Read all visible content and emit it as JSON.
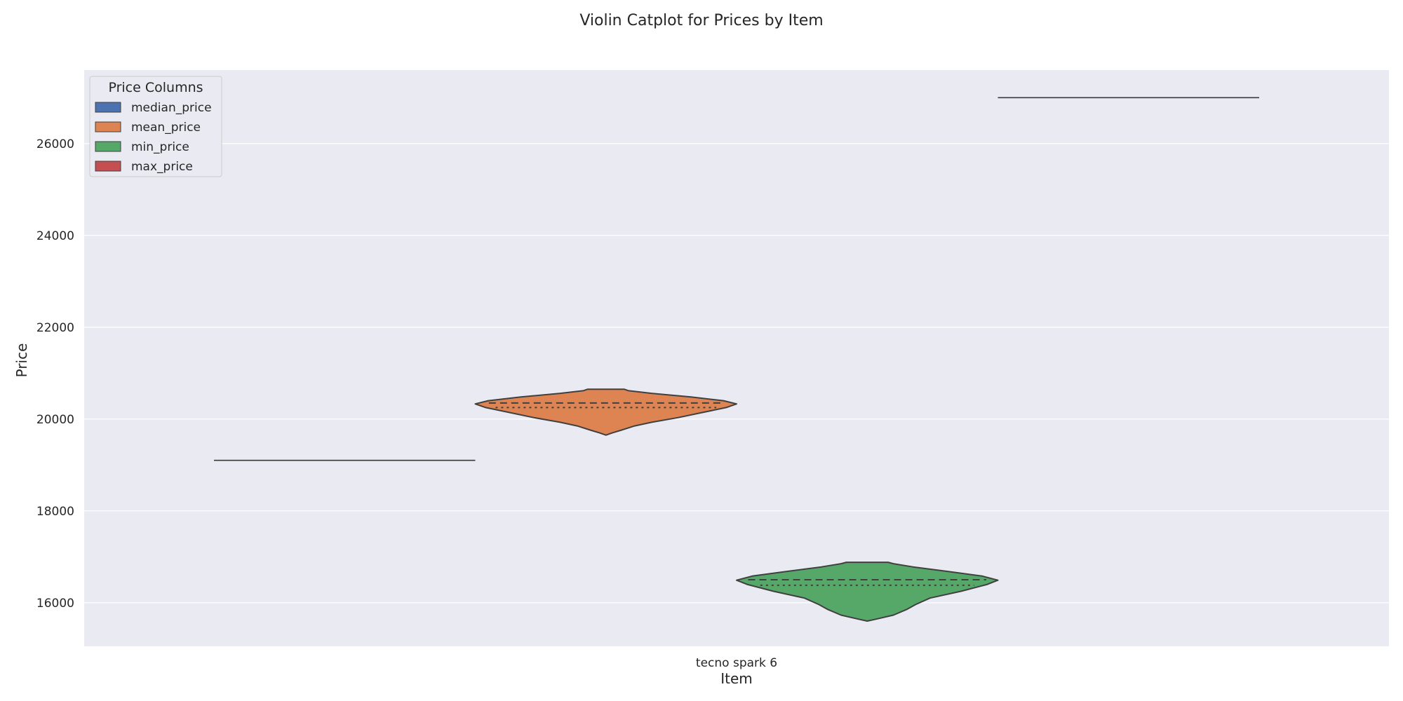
{
  "chart_data": {
    "type": "violin",
    "title": "Violin Catplot for Prices by Item",
    "xlabel": "Item",
    "ylabel": "Price",
    "categories": [
      "tecno spark 6"
    ],
    "ylim": [
      15050,
      27600
    ],
    "yticks": [
      16000,
      18000,
      20000,
      22000,
      24000,
      26000
    ],
    "yticklabels": [
      "16000",
      "18000",
      "20000",
      "22000",
      "24000",
      "26000"
    ],
    "grid": true,
    "legend": {
      "title": "Price Columns",
      "position": "top-left"
    },
    "series": [
      {
        "name": "median_price",
        "color": "#4c72b0",
        "kind": "flat",
        "value": 19100
      },
      {
        "name": "mean_price",
        "color": "#dd8452",
        "kind": "violin",
        "min": 19650,
        "max": 20650,
        "median": 20350,
        "quartile_line": 20250,
        "density": [
          [
            19650,
            0.0
          ],
          [
            19700,
            0.05
          ],
          [
            19760,
            0.12
          ],
          [
            19850,
            0.22
          ],
          [
            19930,
            0.35
          ],
          [
            20030,
            0.55
          ],
          [
            20150,
            0.75
          ],
          [
            20250,
            0.92
          ],
          [
            20330,
            1.0
          ],
          [
            20400,
            0.9
          ],
          [
            20480,
            0.65
          ],
          [
            20560,
            0.35
          ],
          [
            20620,
            0.17
          ],
          [
            20650,
            0.14
          ]
        ]
      },
      {
        "name": "min_price",
        "color": "#55a868",
        "kind": "violin",
        "min": 15600,
        "max": 16880,
        "median": 16500,
        "quartile_line": 16380,
        "density": [
          [
            15600,
            0.0
          ],
          [
            15650,
            0.08
          ],
          [
            15730,
            0.2
          ],
          [
            15850,
            0.3
          ],
          [
            15960,
            0.37
          ],
          [
            16100,
            0.48
          ],
          [
            16250,
            0.72
          ],
          [
            16400,
            0.92
          ],
          [
            16490,
            1.0
          ],
          [
            16580,
            0.88
          ],
          [
            16680,
            0.62
          ],
          [
            16780,
            0.35
          ],
          [
            16850,
            0.2
          ],
          [
            16880,
            0.16
          ]
        ]
      },
      {
        "name": "max_price",
        "color": "#c44e52",
        "kind": "flat",
        "value": 27000
      }
    ]
  }
}
